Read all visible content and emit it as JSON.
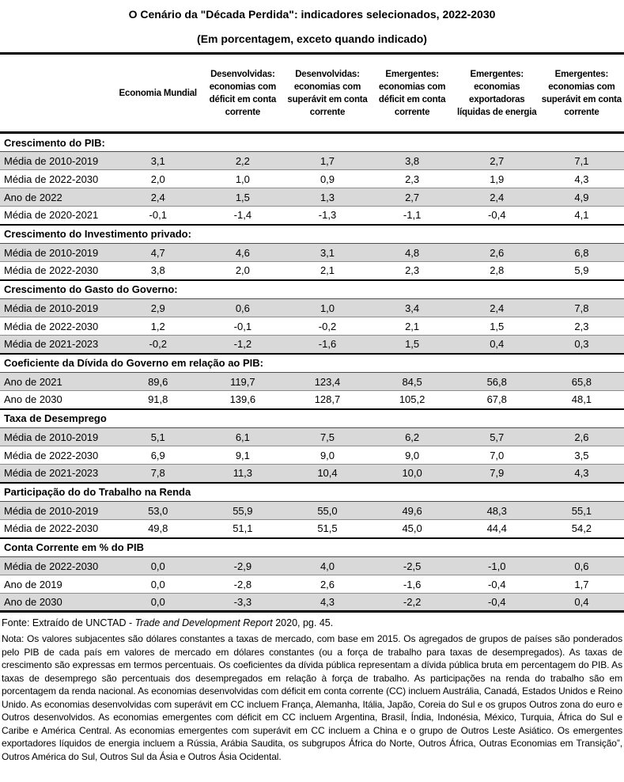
{
  "title": "O Cenário da \"Década Perdida\": indicadores selecionados, 2022-2030",
  "subtitle": "(Em porcentagem, exceto quando indicado)",
  "colors": {
    "row_shade": "#d9d9d9",
    "border_strong": "#000000",
    "border_light": "#8c8c8c",
    "text": "#000000"
  },
  "table": {
    "columns": [
      "Economia Mundial",
      "Desenvolvidas: economias com déficit em conta corrente",
      "Desenvolvidas: economias com superávit em conta corrente",
      "Emergentes: economias com déficit em conta corrente",
      "Emergentes: economias exportadoras líquidas de energia",
      "Emergentes: economias com superávit em conta corrente"
    ],
    "sections": [
      {
        "label": "Crescimento do PIB:",
        "rows": [
          {
            "label": "Média de 2010-2019",
            "values": [
              "3,1",
              "2,2",
              "1,7",
              "3,8",
              "2,7",
              "7,1"
            ]
          },
          {
            "label": "Média de 2022-2030",
            "values": [
              "2,0",
              "1,0",
              "0,9",
              "2,3",
              "1,9",
              "4,3"
            ]
          },
          {
            "label": "Ano de 2022",
            "values": [
              "2,4",
              "1,5",
              "1,3",
              "2,7",
              "2,4",
              "4,9"
            ]
          },
          {
            "label": "Média de 2020-2021",
            "values": [
              "-0,1",
              "-1,4",
              "-1,3",
              "-1,1",
              "-0,4",
              "4,1"
            ]
          }
        ]
      },
      {
        "label": "Crescimento do Investimento privado:",
        "rows": [
          {
            "label": "Média de 2010-2019",
            "values": [
              "4,7",
              "4,6",
              "3,1",
              "4,8",
              "2,6",
              "6,8"
            ]
          },
          {
            "label": "Média de 2022-2030",
            "values": [
              "3,8",
              "2,0",
              "2,1",
              "2,3",
              "2,8",
              "5,9"
            ]
          }
        ]
      },
      {
        "label": "Crescimento do Gasto do Governo:",
        "rows": [
          {
            "label": "Média de 2010-2019",
            "values": [
              "2,9",
              "0,6",
              "1,0",
              "3,4",
              "2,4",
              "7,8"
            ]
          },
          {
            "label": "Média de 2022-2030",
            "values": [
              "1,2",
              "-0,1",
              "-0,2",
              "2,1",
              "1,5",
              "2,3"
            ]
          },
          {
            "label": "Média de 2021-2023",
            "values": [
              "-0,2",
              "-1,2",
              "-1,6",
              "1,5",
              "0,4",
              "0,3"
            ]
          }
        ]
      },
      {
        "label": "Coeficiente da Dívida do Governo em relação ao PIB:",
        "rows": [
          {
            "label": "Ano de 2021",
            "values": [
              "89,6",
              "119,7",
              "123,4",
              "84,5",
              "56,8",
              "65,8"
            ]
          },
          {
            "label": "Ano de 2030",
            "values": [
              "91,8",
              "139,6",
              "128,7",
              "105,2",
              "67,8",
              "48,1"
            ]
          }
        ]
      },
      {
        "label": "Taxa de Desemprego",
        "rows": [
          {
            "label": "Média de 2010-2019",
            "values": [
              "5,1",
              "6,1",
              "7,5",
              "6,2",
              "5,7",
              "2,6"
            ]
          },
          {
            "label": "Média de 2022-2030",
            "values": [
              "6,9",
              "9,1",
              "9,0",
              "9,0",
              "7,0",
              "3,5"
            ]
          },
          {
            "label": "Média de 2021-2023",
            "values": [
              "7,8",
              "11,3",
              "10,4",
              "10,0",
              "7,9",
              "4,3"
            ]
          }
        ]
      },
      {
        "label": "Participação do do Trabalho na Renda",
        "rows": [
          {
            "label": "Média de 2010-2019",
            "values": [
              "53,0",
              "55,9",
              "55,0",
              "49,6",
              "48,3",
              "55,1"
            ]
          },
          {
            "label": "Média de 2022-2030",
            "values": [
              "49,8",
              "51,1",
              "51,5",
              "45,0",
              "44,4",
              "54,2"
            ]
          }
        ]
      },
      {
        "label": "Conta Corrente em % do PIB",
        "rows": [
          {
            "label": "Média de 2022-2030",
            "values": [
              "0,0",
              "-2,9",
              "4,0",
              "-2,5",
              "-1,0",
              "0,6"
            ]
          },
          {
            "label": "Ano de 2019",
            "values": [
              "0,0",
              "-2,8",
              "2,6",
              "-1,6",
              "-0,4",
              "1,7"
            ]
          },
          {
            "label": "Ano de 2030",
            "values": [
              "0,0",
              "-3,3",
              "4,3",
              "-2,2",
              "-0,4",
              "0,4"
            ]
          }
        ]
      }
    ]
  },
  "source": {
    "prefix": "Fonte: Extraído de UNCTAD - ",
    "report": "Trade and Development Report",
    "suffix": " 2020, pg. 45."
  },
  "note": "Nota: Os valores subjacentes são dólares constantes a taxas de mercado, com base em 2015. Os agregados de grupos de países são ponderados pelo PIB de cada país em valores de mercado em dólares constantes (ou a força de trabalho para taxas de desempregados). As taxas de crescimento são expressas em termos percentuais. Os coeficientes da dívida pública representam a dívida pública bruta em percentagem do PIB. As taxas de desemprego são percentuais dos desempregados em relação à força de trabalho. As participações na renda do trabalho são em porcentagem da renda nacional. As economias desenvolvidas com déficit em conta corrente (CC) incluem Austrália, Canadá, Estados Unidos e Reino Unido. As economias desenvolvidas com superávit em CC incluem França, Alemanha, Itália, Japão, Coreia do Sul e os grupos Outros zona do euro e Outros desenvolvidos. As economias emergentes com déficit em CC incluem Argentina, Brasil, Índia, Indonésia, México, Turquia, África do Sul e Caribe e América Central. As economias emergentes com superávit em CC incluem a China e o grupo de Outros Leste Asiático. Os emergentes exportadores líquidos de energia incluem a Rússia, Arábia Saudita, os subgrupos África do Norte, Outros África, Outras Economias em Transição”, Outros América do Sul, Outros Sul da Ásia e Outros Ásia Ocidental."
}
